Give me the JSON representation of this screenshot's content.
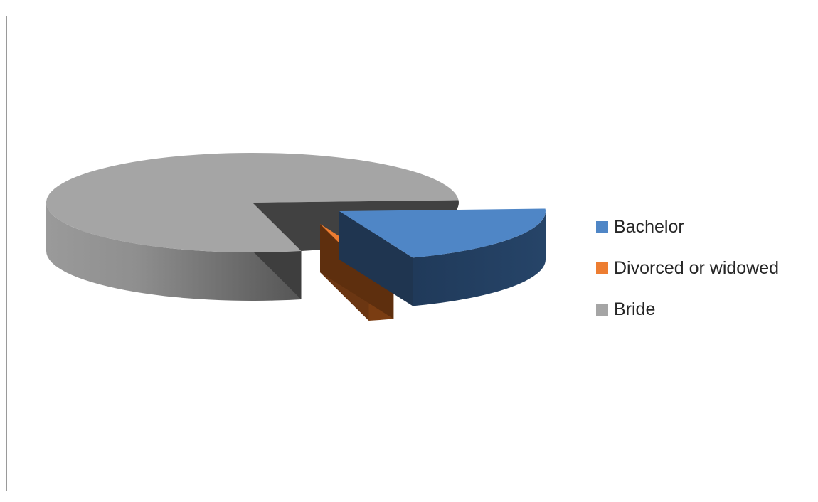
{
  "chart_data": {
    "type": "pie",
    "style": "3d-exploded",
    "title": "",
    "categories": [
      "Bachelor",
      "Divorced or widowed",
      "Bride"
    ],
    "values": [
      20,
      2,
      78
    ],
    "unit": "percent",
    "colors": [
      "#4f86c6",
      "#ed7d31",
      "#a5a5a5"
    ],
    "legend_position": "right",
    "exploded": [
      "Bachelor",
      "Divorced or widowed"
    ]
  }
}
